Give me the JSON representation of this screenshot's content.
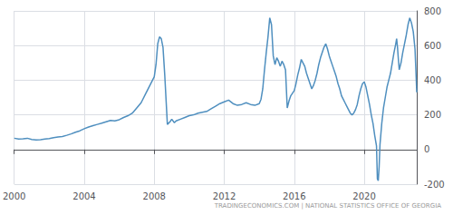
{
  "chart_data": {
    "type": "line",
    "annotations": [
      "TRADINGECONOMICS.COM | NATIONAL STATISTICS OFFICE OF GEORGIA"
    ],
    "color": "#4f8fbf",
    "xlim": [
      2000,
      2023.0
    ],
    "ylim": [
      -200,
      800
    ],
    "xticks": [
      2000,
      2004,
      2008,
      2012,
      2016,
      2020
    ],
    "yticks": [
      -200,
      0,
      200,
      400,
      600,
      800
    ],
    "grid": true,
    "x": [
      2000.0,
      2000.25,
      2000.5,
      2000.75,
      2001.0,
      2001.25,
      2001.5,
      2001.75,
      2002.0,
      2002.25,
      2002.5,
      2002.75,
      2003.0,
      2003.25,
      2003.5,
      2003.75,
      2004.0,
      2004.25,
      2004.5,
      2004.75,
      2005.0,
      2005.25,
      2005.5,
      2005.75,
      2006.0,
      2006.25,
      2006.5,
      2006.75,
      2007.0,
      2007.25,
      2007.5,
      2007.75,
      2008.0,
      2008.1,
      2008.2,
      2008.3,
      2008.4,
      2008.5,
      2008.6,
      2008.75,
      2008.9,
      2009.0,
      2009.15,
      2009.25,
      2009.5,
      2009.75,
      2010.0,
      2010.25,
      2010.5,
      2010.75,
      2011.0,
      2011.25,
      2011.5,
      2011.75,
      2012.0,
      2012.25,
      2012.5,
      2012.75,
      2013.0,
      2013.25,
      2013.5,
      2013.75,
      2014.0,
      2014.1,
      2014.2,
      2014.3,
      2014.4,
      2014.5,
      2014.6,
      2014.7,
      2014.8,
      2014.9,
      2015.0,
      2015.1,
      2015.2,
      2015.3,
      2015.4,
      2015.5,
      2015.6,
      2015.7,
      2015.8,
      2016.0,
      2016.1,
      2016.2,
      2016.3,
      2016.4,
      2016.5,
      2016.6,
      2016.7,
      2016.8,
      2016.9,
      2017.0,
      2017.1,
      2017.2,
      2017.3,
      2017.4,
      2017.5,
      2017.6,
      2017.7,
      2017.8,
      2017.9,
      2018.0,
      2018.1,
      2018.2,
      2018.3,
      2018.4,
      2018.5,
      2018.6,
      2018.7,
      2018.8,
      2018.9,
      2019.0,
      2019.1,
      2019.2,
      2019.3,
      2019.4,
      2019.5,
      2019.6,
      2019.7,
      2019.8,
      2019.9,
      2020.0,
      2020.1,
      2020.2,
      2020.3,
      2020.4,
      2020.5,
      2020.6,
      2020.7,
      2020.75,
      2020.8,
      2020.85,
      2020.9,
      2021.0,
      2021.1,
      2021.2,
      2021.3,
      2021.4,
      2021.5,
      2021.6,
      2021.7,
      2021.8,
      2021.85,
      2021.9,
      2021.95,
      2022.0,
      2022.1,
      2022.2,
      2022.3,
      2022.4,
      2022.5,
      2022.6,
      2022.7,
      2022.8,
      2022.9,
      2023.0
    ],
    "values": [
      65,
      60,
      62,
      65,
      58,
      55,
      57,
      60,
      63,
      68,
      72,
      75,
      82,
      90,
      100,
      108,
      120,
      130,
      138,
      145,
      152,
      160,
      168,
      165,
      172,
      185,
      195,
      210,
      240,
      270,
      320,
      370,
      420,
      490,
      610,
      650,
      640,
      590,
      430,
      145,
      160,
      175,
      155,
      165,
      175,
      185,
      195,
      200,
      210,
      215,
      220,
      235,
      250,
      265,
      275,
      285,
      265,
      255,
      260,
      270,
      260,
      255,
      265,
      290,
      350,
      460,
      560,
      650,
      760,
      720,
      540,
      490,
      530,
      510,
      480,
      510,
      490,
      460,
      240,
      280,
      310,
      340,
      380,
      430,
      470,
      520,
      500,
      480,
      440,
      410,
      380,
      350,
      370,
      400,
      440,
      490,
      530,
      560,
      590,
      610,
      580,
      540,
      510,
      480,
      450,
      420,
      380,
      350,
      310,
      290,
      270,
      250,
      230,
      210,
      200,
      210,
      230,
      260,
      310,
      350,
      380,
      390,
      360,
      310,
      260,
      200,
      150,
      80,
      20,
      -170,
      -180,
      -100,
      30,
      150,
      240,
      300,
      360,
      400,
      440,
      500,
      560,
      610,
      640,
      590,
      520,
      460,
      500,
      560,
      610,
      660,
      720,
      760,
      730,
      680,
      580,
      330
    ]
  }
}
